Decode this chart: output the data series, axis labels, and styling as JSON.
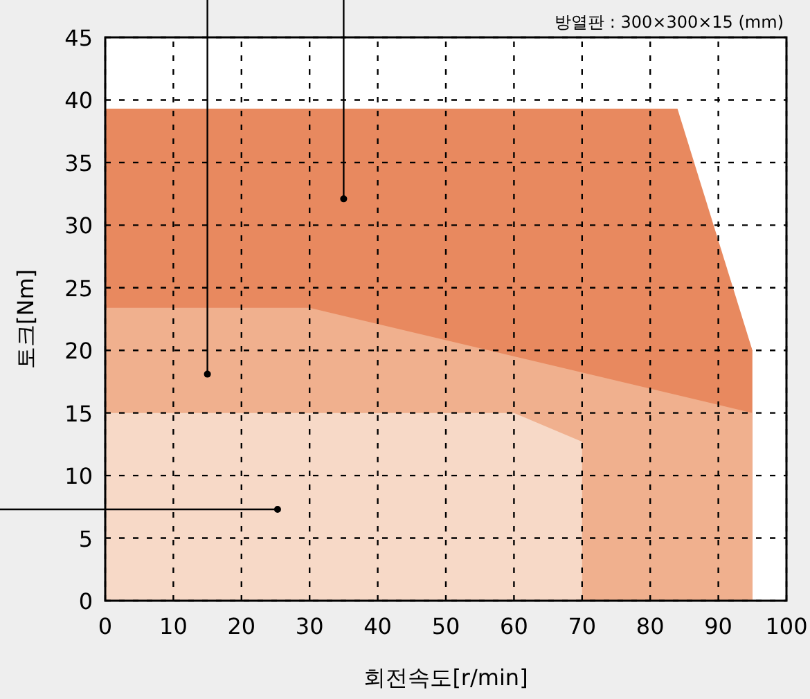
{
  "chart_data": {
    "type": "area",
    "xlabel": "회전속도[r/min]",
    "ylabel": "토크[Nm]",
    "annotations": [
      "방열판 : 300×300×15 (mm)"
    ],
    "series": [
      {
        "color": "#e8895f",
        "x": [
          0,
          84,
          95
        ],
        "values": [
          39.3,
          39.3,
          20
        ]
      },
      {
        "color": "#f0b08e",
        "x": [
          0,
          30,
          95
        ],
        "values": [
          23.4,
          23.4,
          15
        ]
      },
      {
        "color": "#f7d9c7",
        "x": [
          0,
          60,
          70
        ],
        "values": [
          15,
          15,
          12.7
        ]
      }
    ],
    "xlim": [
      0,
      100
    ],
    "xticks": [
      0,
      10,
      20,
      30,
      40,
      50,
      60,
      70,
      80,
      90,
      100
    ],
    "ylim": [
      0,
      45
    ],
    "yticks": [
      0,
      5,
      10,
      15,
      20,
      25,
      30,
      35,
      40,
      45
    ],
    "grid": true,
    "line_style": "dashed"
  }
}
